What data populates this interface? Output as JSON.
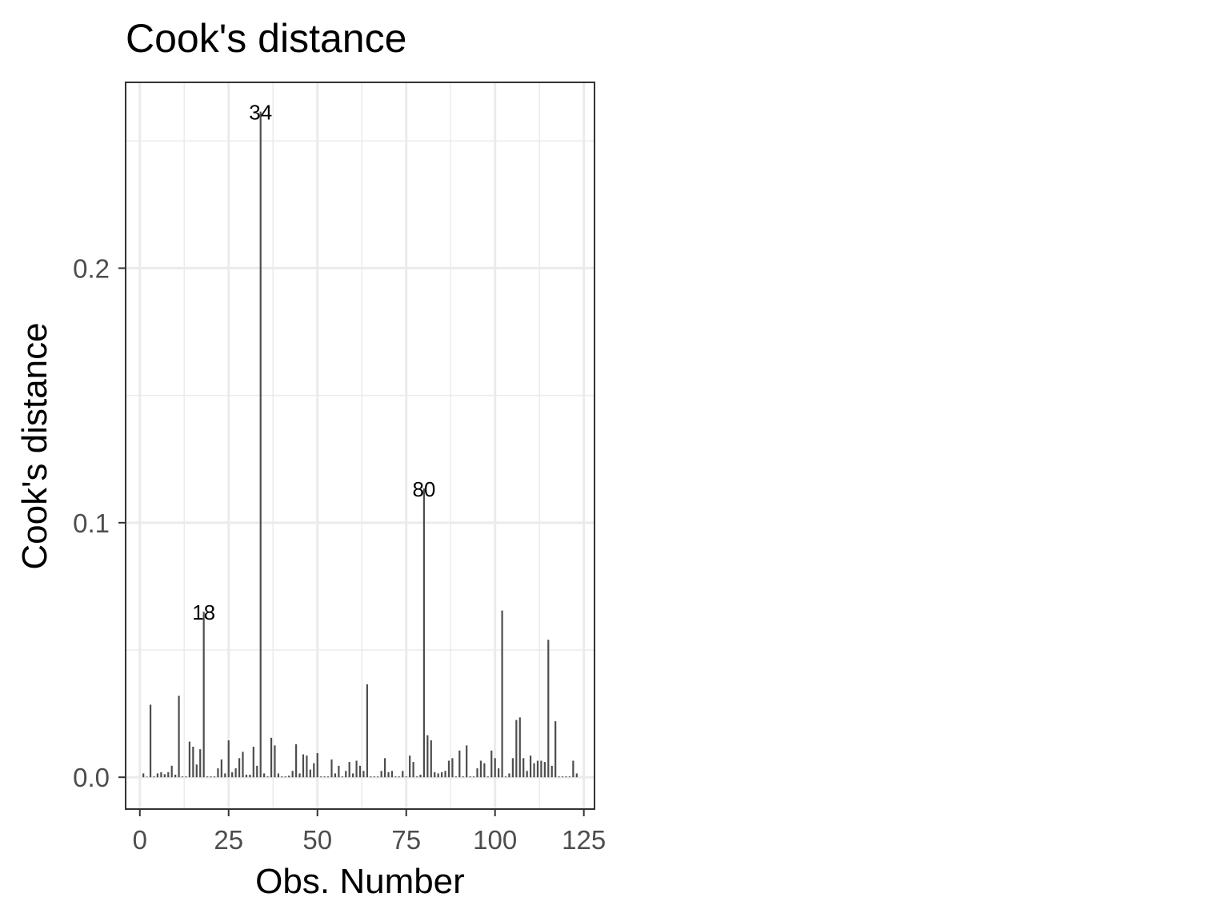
{
  "chart_data": {
    "type": "bar",
    "title": "Cook's distance",
    "xlabel": "Obs. Number",
    "ylabel": "Cook's distance",
    "xlim": [
      -4,
      128
    ],
    "ylim": [
      -0.0125,
      0.273
    ],
    "x_ticks": [
      0,
      25,
      50,
      75,
      100,
      125
    ],
    "y_ticks": [
      0.0,
      0.1,
      0.2
    ],
    "y_tick_labels": [
      "0.0",
      "0.1",
      "0.2"
    ],
    "grid": true,
    "colors": {
      "bar": "#4d4d4d",
      "grid": "#ebebeb",
      "panel_border": "#333333"
    },
    "x": [
      1,
      2,
      3,
      4,
      5,
      6,
      7,
      8,
      9,
      10,
      11,
      12,
      13,
      14,
      15,
      16,
      17,
      18,
      19,
      20,
      21,
      22,
      23,
      24,
      25,
      26,
      27,
      28,
      29,
      30,
      31,
      32,
      33,
      34,
      35,
      36,
      37,
      38,
      39,
      40,
      41,
      42,
      43,
      44,
      45,
      46,
      47,
      48,
      49,
      50,
      51,
      52,
      53,
      54,
      55,
      56,
      57,
      58,
      59,
      60,
      61,
      62,
      63,
      64,
      65,
      66,
      67,
      68,
      69,
      70,
      71,
      72,
      73,
      74,
      75,
      76,
      77,
      78,
      79,
      80,
      81,
      82,
      83,
      84,
      85,
      86,
      87,
      88,
      89,
      90,
      91,
      92,
      93,
      94,
      95,
      96,
      97,
      98,
      99,
      100,
      101,
      102,
      103,
      104,
      105,
      106,
      107,
      108,
      109,
      110,
      111,
      112,
      113,
      114,
      115,
      116,
      117,
      118,
      119,
      120,
      121,
      122,
      123
    ],
    "values": [
      0.0015,
      0.0002,
      0.0285,
      0.0003,
      0.0015,
      0.002,
      0.0012,
      0.002,
      0.0045,
      0.001,
      0.032,
      0.0003,
      0.0003,
      0.014,
      0.012,
      0.005,
      0.011,
      0.065,
      0.0003,
      0.0003,
      0.0003,
      0.0035,
      0.007,
      0.0015,
      0.0145,
      0.002,
      0.0035,
      0.0075,
      0.01,
      0.001,
      0.001,
      0.012,
      0.0045,
      0.2615,
      0.0015,
      0.0003,
      0.0155,
      0.0125,
      0.0015,
      0.0003,
      0.0003,
      0.0006,
      0.0025,
      0.013,
      0.0015,
      0.009,
      0.0085,
      0.003,
      0.0055,
      0.0095,
      0.0003,
      0.0003,
      0.0003,
      0.007,
      0.0015,
      0.0045,
      0.0003,
      0.0025,
      0.006,
      0.0015,
      0.0065,
      0.0045,
      0.0025,
      0.0365,
      0.0003,
      0.0003,
      0.0003,
      0.0025,
      0.0075,
      0.002,
      0.0025,
      0.0003,
      0.0003,
      0.0025,
      0.0003,
      0.0085,
      0.006,
      0.0003,
      0.001,
      0.1135,
      0.0165,
      0.0145,
      0.002,
      0.0015,
      0.002,
      0.0025,
      0.0065,
      0.0075,
      0.0003,
      0.0105,
      0.0003,
      0.0125,
      0.0003,
      0.0003,
      0.0035,
      0.0065,
      0.0055,
      0.0003,
      0.0105,
      0.0075,
      0.0035,
      0.0655,
      0.0003,
      0.0015,
      0.0075,
      0.0225,
      0.0235,
      0.0075,
      0.0025,
      0.0085,
      0.0055,
      0.0065,
      0.0065,
      0.006,
      0.054,
      0.0045,
      0.022,
      0.0003,
      0.0003,
      0.0003,
      0.0003,
      0.0065,
      0.0015
    ],
    "annotations": [
      {
        "x": 18,
        "y": 0.065,
        "label": "18"
      },
      {
        "x": 34,
        "y": 0.2615,
        "label": "34"
      },
      {
        "x": 80,
        "y": 0.1135,
        "label": "80"
      }
    ]
  }
}
